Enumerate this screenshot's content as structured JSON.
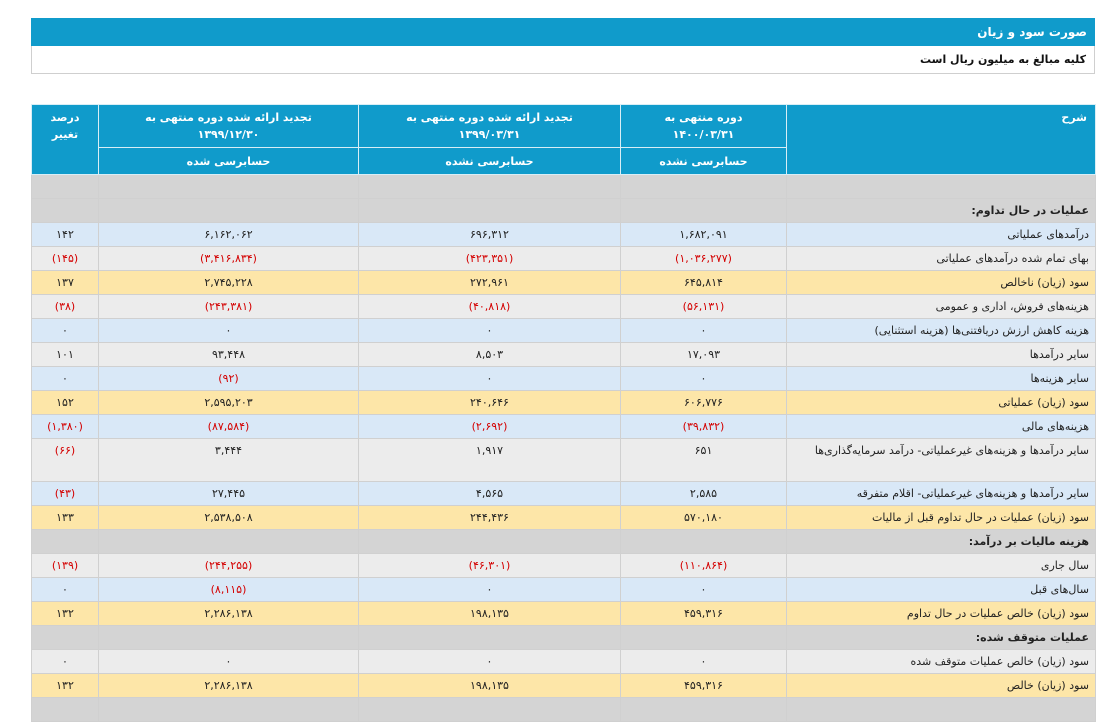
{
  "header": {
    "title": "صورت سود و زیان",
    "note": "کلیه مبالغ به میلیون ریال است"
  },
  "columns": {
    "desc": "شرح",
    "col1_line1": "دوره منتهی به",
    "col1_line2": "۱۴۰۰/۰۳/۳۱",
    "col1_status": "حسابرسی نشده",
    "col2_line1": "تجدید ارائه شده دوره منتهی به",
    "col2_line2": "۱۳۹۹/۰۳/۳۱",
    "col2_status": "حسابرسی نشده",
    "col3_line1": "تجدید ارائه شده دوره منتهی به",
    "col3_line2": "۱۳۹۹/۱۲/۳۰",
    "col3_status": "حسابرسی شده",
    "pct_line1": "درصد",
    "pct_line2": "تغییر"
  },
  "rows": [
    {
      "style": "section",
      "desc": "",
      "c1": "",
      "c2": "",
      "c3": "",
      "pct": ""
    },
    {
      "style": "section",
      "desc": "عملیات در حال تداوم:",
      "c1": "",
      "c2": "",
      "c3": "",
      "pct": ""
    },
    {
      "style": "blue",
      "desc": "درآمدهای عملیاتی",
      "c1": "۱,۶۸۲,۰۹۱",
      "c2": "۶۹۶,۳۱۲",
      "c3": "۶,۱۶۲,۰۶۲",
      "pct": "۱۴۲",
      "neg": [
        false,
        false,
        false,
        false
      ]
    },
    {
      "style": "gray",
      "desc": "بهای تمام شده درآمدهای عملیاتی",
      "c1": "(۱,۰۳۶,۲۷۷)",
      "c2": "(۴۲۳,۳۵۱)",
      "c3": "(۳,۴۱۶,۸۳۴)",
      "pct": "(۱۴۵)",
      "neg": [
        true,
        true,
        true,
        true
      ]
    },
    {
      "style": "yellow",
      "desc": "سود (زیان) ناخالص",
      "c1": "۶۴۵,۸۱۴",
      "c2": "۲۷۲,۹۶۱",
      "c3": "۲,۷۴۵,۲۲۸",
      "pct": "۱۳۷",
      "neg": [
        false,
        false,
        false,
        false
      ]
    },
    {
      "style": "gray",
      "desc": "هزینه‌های فروش، اداری و عمومی",
      "c1": "(۵۶,۱۳۱)",
      "c2": "(۴۰,۸۱۸)",
      "c3": "(۲۴۳,۳۸۱)",
      "pct": "(۳۸)",
      "neg": [
        true,
        true,
        true,
        true
      ]
    },
    {
      "style": "blue",
      "desc": "هزینه کاهش ارزش دریافتنی‌ها (هزینه استثنایی)",
      "c1": "۰",
      "c2": "۰",
      "c3": "۰",
      "pct": "۰",
      "neg": [
        false,
        false,
        false,
        false
      ]
    },
    {
      "style": "gray",
      "desc": "سایر درآمدها",
      "c1": "۱۷,۰۹۳",
      "c2": "۸,۵۰۳",
      "c3": "۹۳,۴۴۸",
      "pct": "۱۰۱",
      "neg": [
        false,
        false,
        false,
        false
      ]
    },
    {
      "style": "blue",
      "desc": "سایر هزینه‌ها",
      "c1": "۰",
      "c2": "۰",
      "c3": "(۹۲)",
      "pct": "۰",
      "neg": [
        false,
        false,
        true,
        false
      ]
    },
    {
      "style": "yellow",
      "desc": "سود (زیان) عملیاتی",
      "c1": "۶۰۶,۷۷۶",
      "c2": "۲۴۰,۶۴۶",
      "c3": "۲,۵۹۵,۲۰۳",
      "pct": "۱۵۲",
      "neg": [
        false,
        false,
        false,
        false
      ]
    },
    {
      "style": "blue",
      "desc": "هزینه‌های مالی",
      "c1": "(۳۹,۸۳۲)",
      "c2": "(۲,۶۹۲)",
      "c3": "(۸۷,۵۸۴)",
      "pct": "(۱,۳۸۰)",
      "neg": [
        true,
        true,
        true,
        true
      ]
    },
    {
      "style": "gray",
      "tall": true,
      "desc": "سایر درآمدها و هزینه‌های غیرعملیاتی- درآمد سرمایه‌گذاری‌ها",
      "c1": "۶۵۱",
      "c2": "۱,۹۱۷",
      "c3": "۳,۴۴۴",
      "pct": "(۶۶)",
      "neg": [
        false,
        false,
        false,
        true
      ]
    },
    {
      "style": "blue",
      "desc": "سایر درآمدها و هزینه‌های غیرعملیاتی- اقلام متفرقه",
      "c1": "۲,۵۸۵",
      "c2": "۴,۵۶۵",
      "c3": "۲۷,۴۴۵",
      "pct": "(۴۳)",
      "neg": [
        false,
        false,
        false,
        true
      ]
    },
    {
      "style": "yellow",
      "desc": "سود (زیان) عملیات در حال تداوم قبل از مالیات",
      "c1": "۵۷۰,۱۸۰",
      "c2": "۲۴۴,۴۳۶",
      "c3": "۲,۵۳۸,۵۰۸",
      "pct": "۱۳۳",
      "neg": [
        false,
        false,
        false,
        false
      ]
    },
    {
      "style": "section",
      "desc": "هزینه مالیات بر درآمد:",
      "c1": "",
      "c2": "",
      "c3": "",
      "pct": ""
    },
    {
      "style": "gray",
      "desc": "سال جاری",
      "c1": "(۱۱۰,۸۶۴)",
      "c2": "(۴۶,۳۰۱)",
      "c3": "(۲۴۴,۲۵۵)",
      "pct": "(۱۳۹)",
      "neg": [
        true,
        true,
        true,
        true
      ]
    },
    {
      "style": "blue",
      "desc": "سال‌های قبل",
      "c1": "۰",
      "c2": "۰",
      "c3": "(۸,۱۱۵)",
      "pct": "۰",
      "neg": [
        false,
        false,
        true,
        false
      ]
    },
    {
      "style": "yellow",
      "desc": "سود (زیان) خالص عملیات در حال تداوم",
      "c1": "۴۵۹,۳۱۶",
      "c2": "۱۹۸,۱۳۵",
      "c3": "۲,۲۸۶,۱۳۸",
      "pct": "۱۳۲",
      "neg": [
        false,
        false,
        false,
        false
      ]
    },
    {
      "style": "section",
      "desc": "عملیات متوقف شده:",
      "c1": "",
      "c2": "",
      "c3": "",
      "pct": ""
    },
    {
      "style": "gray",
      "desc": "سود (زیان) خالص عملیات متوقف شده",
      "c1": "۰",
      "c2": "۰",
      "c3": "۰",
      "pct": "۰",
      "neg": [
        false,
        false,
        false,
        false
      ]
    },
    {
      "style": "yellow",
      "desc": "سود (زیان) خالص",
      "c1": "۴۵۹,۳۱۶",
      "c2": "۱۹۸,۱۳۵",
      "c3": "۲,۲۸۶,۱۳۸",
      "pct": "۱۳۲",
      "neg": [
        false,
        false,
        false,
        false
      ]
    },
    {
      "style": "section",
      "desc": "",
      "c1": "",
      "c2": "",
      "c3": "",
      "pct": ""
    }
  ]
}
